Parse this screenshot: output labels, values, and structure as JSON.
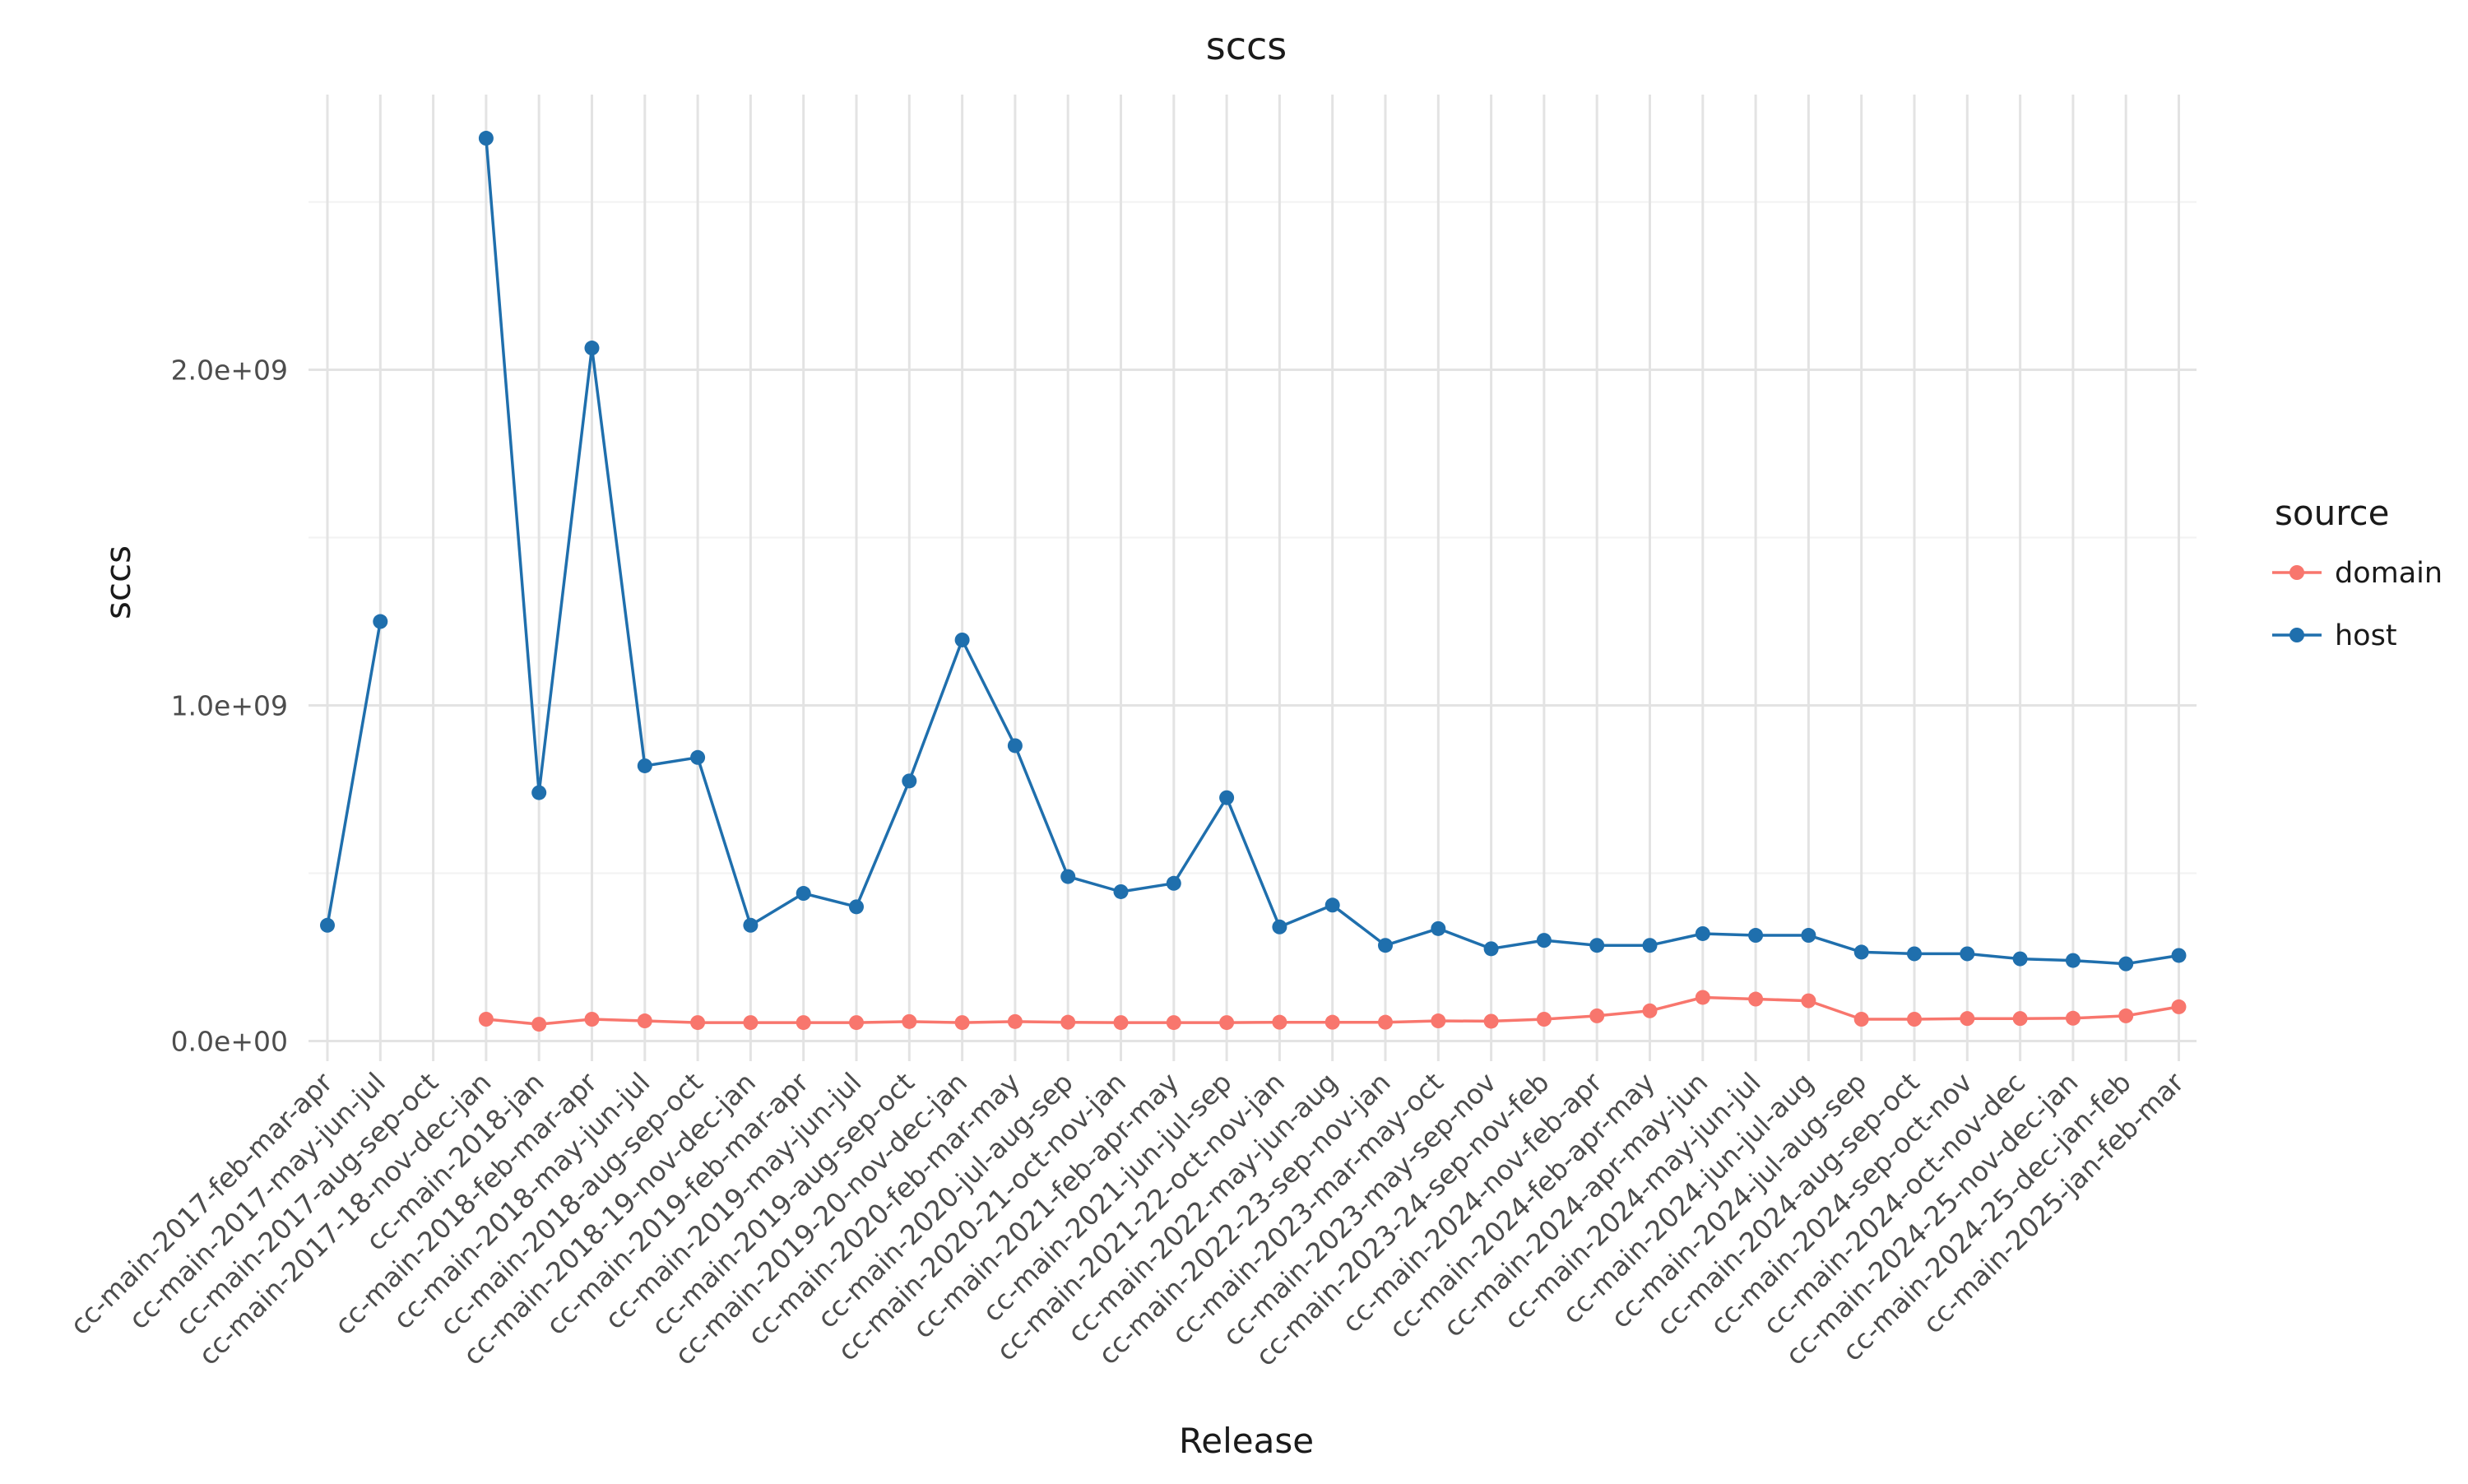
{
  "chart_data": {
    "type": "line",
    "title": "sccs",
    "xlabel": "Release",
    "ylabel": "sccs",
    "categories": [
      "cc-main-2017-feb-mar-apr",
      "cc-main-2017-may-jun-jul",
      "cc-main-2017-aug-sep-oct",
      "cc-main-2017-18-nov-dec-jan",
      "cc-main-2018-jan",
      "cc-main-2018-feb-mar-apr",
      "cc-main-2018-may-jun-jul",
      "cc-main-2018-aug-sep-oct",
      "cc-main-2018-19-nov-dec-jan",
      "cc-main-2019-feb-mar-apr",
      "cc-main-2019-may-jun-jul",
      "cc-main-2019-aug-sep-oct",
      "cc-main-2019-20-nov-dec-jan",
      "cc-main-2020-feb-mar-may",
      "cc-main-2020-jul-aug-sep",
      "cc-main-2020-21-oct-nov-jan",
      "cc-main-2021-feb-apr-may",
      "cc-main-2021-jun-jul-sep",
      "cc-main-2021-22-oct-nov-jan",
      "cc-main-2022-may-jun-aug",
      "cc-main-2022-23-sep-nov-jan",
      "cc-main-2023-mar-may-oct",
      "cc-main-2023-may-sep-nov",
      "cc-main-2023-24-sep-nov-feb",
      "cc-main-2024-nov-feb-apr",
      "cc-main-2024-feb-apr-may",
      "cc-main-2024-apr-may-jun",
      "cc-main-2024-may-jun-jul",
      "cc-main-2024-jun-jul-aug",
      "cc-main-2024-jul-aug-sep",
      "cc-main-2024-aug-sep-oct",
      "cc-main-2024-sep-oct-nov",
      "cc-main-2024-oct-nov-dec",
      "cc-main-2024-25-nov-dec-jan",
      "cc-main-2024-25-dec-jan-feb",
      "cc-main-2025-jan-feb-mar"
    ],
    "series": [
      {
        "name": "domain",
        "color": "#F8766D",
        "values": [
          null,
          null,
          null,
          65000000,
          50000000,
          65000000,
          60000000,
          55000000,
          55000000,
          55000000,
          55000000,
          58000000,
          55000000,
          58000000,
          56000000,
          55000000,
          55000000,
          55000000,
          56000000,
          56000000,
          56000000,
          60000000,
          59000000,
          65000000,
          75000000,
          90000000,
          130000000,
          125000000,
          120000000,
          65000000,
          65000000,
          67000000,
          67000000,
          68000000,
          75000000,
          102000000
        ]
      },
      {
        "name": "host",
        "color": "#1F6FAD",
        "values": [
          345000000,
          1250000000,
          null,
          2690000000,
          740000000,
          2065000000,
          820000000,
          845000000,
          345000000,
          440000000,
          400000000,
          775000000,
          1195000000,
          880000000,
          490000000,
          445000000,
          470000000,
          725000000,
          340000000,
          405000000,
          285000000,
          335000000,
          275000000,
          300000000,
          285000000,
          285000000,
          320000000,
          315000000,
          315000000,
          265000000,
          260000000,
          260000000,
          245000000,
          240000000,
          230000000,
          255000000
        ]
      }
    ],
    "yticks": [
      0,
      1000000000,
      2000000000
    ],
    "ytick_labels": [
      "0.0e+00",
      "1.0e+09",
      "2.0e+09"
    ],
    "ylim": [
      -60000000,
      2820000000
    ],
    "grid": true,
    "legend": {
      "title": "source",
      "position": "right"
    }
  }
}
